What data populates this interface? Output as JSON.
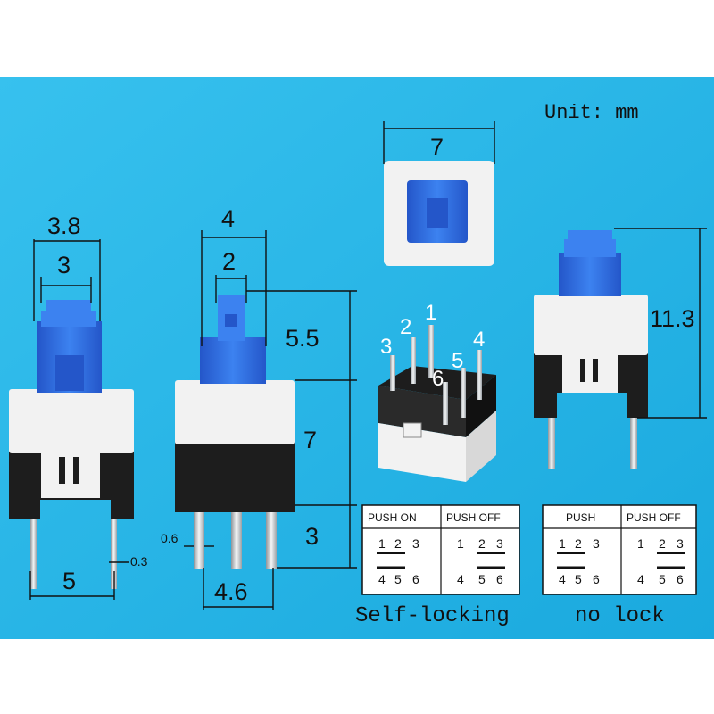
{
  "unit_label": "Unit: mm",
  "colors": {
    "background": "#2ab6e6",
    "button_blue": "#2e6fe8",
    "body_white": "#f2f2f2",
    "base_black": "#1d1d1d",
    "pin_silver": "#cfd3d6",
    "dimension_line": "#111111"
  },
  "dimensions": {
    "button_width": "3.8",
    "button_cap": "3",
    "side_body_width": "4",
    "side_cap_width": "2",
    "cap_height": "5.5",
    "body_height": "7",
    "pin_height": "3",
    "pin_pitch_front": "5",
    "pin_thickness": "0.3",
    "pin_width": "0.6",
    "pin_pitch_side": "4.6",
    "top_width": "7",
    "total_height": "11.3"
  },
  "pins": [
    "1",
    "2",
    "3",
    "4",
    "5",
    "6"
  ],
  "tables": {
    "self_locking": {
      "caption": "Self-locking",
      "col1_header": "PUSH ON",
      "col2_header": "PUSH OFF"
    },
    "no_lock": {
      "caption": "no lock",
      "col1_header": "PUSH",
      "col2_header": "PUSH OFF"
    },
    "row_top": [
      "1",
      "2",
      "3"
    ],
    "row_bottom": [
      "4",
      "5",
      "6"
    ]
  }
}
